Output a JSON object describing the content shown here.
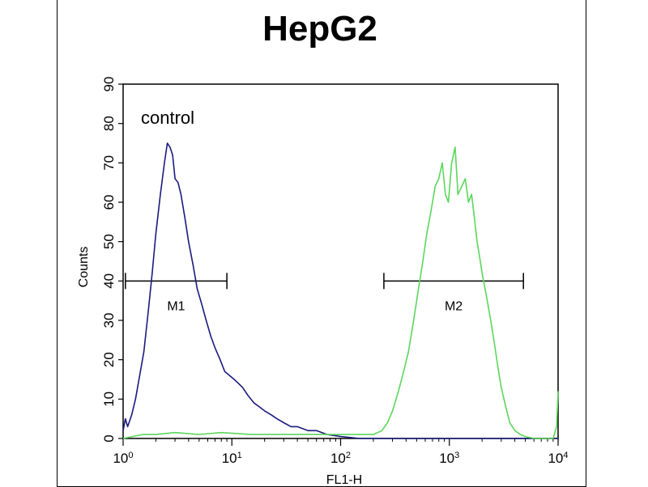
{
  "chart_data": {
    "type": "line",
    "title": "HepG2",
    "xlabel": "FL1-H",
    "ylabel": "Counts",
    "x_scale": "log",
    "xlim": [
      1,
      10000
    ],
    "ylim": [
      0,
      90
    ],
    "x_ticks": [
      {
        "base": "10",
        "exp": "0",
        "value": 1
      },
      {
        "base": "10",
        "exp": "1",
        "value": 10
      },
      {
        "base": "10",
        "exp": "2",
        "value": 100
      },
      {
        "base": "10",
        "exp": "3",
        "value": 1000
      },
      {
        "base": "10",
        "exp": "4",
        "value": 10000
      }
    ],
    "y_ticks": [
      "0",
      "10",
      "20",
      "30",
      "40",
      "50",
      "60",
      "70",
      "80",
      "90"
    ],
    "annotation": "control",
    "markers": [
      {
        "label": "M1",
        "x_start": 1.05,
        "x_end": 9,
        "y": 40
      },
      {
        "label": "M2",
        "x_start": 250,
        "x_end": 4800,
        "y": 40
      }
    ],
    "series": [
      {
        "color": "#1a1a80",
        "points": [
          [
            1.0,
            2
          ],
          [
            1.05,
            5
          ],
          [
            1.1,
            3
          ],
          [
            1.2,
            6
          ],
          [
            1.3,
            10
          ],
          [
            1.4,
            15
          ],
          [
            1.55,
            22
          ],
          [
            1.7,
            32
          ],
          [
            1.85,
            42
          ],
          [
            2.0,
            52
          ],
          [
            2.2,
            62
          ],
          [
            2.4,
            70
          ],
          [
            2.55,
            75
          ],
          [
            2.7,
            74
          ],
          [
            2.85,
            72
          ],
          [
            3.0,
            66
          ],
          [
            3.2,
            65
          ],
          [
            3.4,
            62
          ],
          [
            3.7,
            56
          ],
          [
            4.0,
            50
          ],
          [
            4.4,
            44
          ],
          [
            4.8,
            38
          ],
          [
            5.3,
            34
          ],
          [
            5.8,
            30
          ],
          [
            6.4,
            26
          ],
          [
            7.0,
            23
          ],
          [
            7.8,
            20
          ],
          [
            8.6,
            17
          ],
          [
            9.5,
            16
          ],
          [
            10.5,
            15
          ],
          [
            11.5,
            14
          ],
          [
            12.5,
            13
          ],
          [
            14,
            11
          ],
          [
            16,
            9
          ],
          [
            18,
            8
          ],
          [
            20,
            7
          ],
          [
            23,
            6
          ],
          [
            26,
            5
          ],
          [
            30,
            4
          ],
          [
            35,
            3
          ],
          [
            40,
            3
          ],
          [
            50,
            2
          ],
          [
            60,
            2
          ],
          [
            75,
            1
          ],
          [
            100,
            0.5
          ],
          [
            150,
            0
          ],
          [
            10000,
            0
          ]
        ]
      },
      {
        "color": "#5cd65c",
        "points": [
          [
            1,
            0
          ],
          [
            1.5,
            1
          ],
          [
            2,
            1
          ],
          [
            3,
            1.5
          ],
          [
            5,
            1
          ],
          [
            8,
            1.5
          ],
          [
            15,
            1
          ],
          [
            30,
            1
          ],
          [
            60,
            1
          ],
          [
            120,
            1
          ],
          [
            200,
            1
          ],
          [
            240,
            2
          ],
          [
            270,
            4
          ],
          [
            300,
            7
          ],
          [
            340,
            12
          ],
          [
            380,
            17
          ],
          [
            420,
            22
          ],
          [
            470,
            30
          ],
          [
            520,
            38
          ],
          [
            570,
            45
          ],
          [
            620,
            52
          ],
          [
            680,
            58
          ],
          [
            740,
            64
          ],
          [
            800,
            66
          ],
          [
            860,
            70
          ],
          [
            920,
            62
          ],
          [
            980,
            60
          ],
          [
            1050,
            70
          ],
          [
            1130,
            74
          ],
          [
            1200,
            62
          ],
          [
            1300,
            64
          ],
          [
            1400,
            66
          ],
          [
            1500,
            60
          ],
          [
            1600,
            62
          ],
          [
            1700,
            56
          ],
          [
            1800,
            50
          ],
          [
            1900,
            46
          ],
          [
            2000,
            42
          ],
          [
            2200,
            36
          ],
          [
            2400,
            30
          ],
          [
            2600,
            24
          ],
          [
            2800,
            18
          ],
          [
            3000,
            13
          ],
          [
            3300,
            8
          ],
          [
            3600,
            4
          ],
          [
            4000,
            2
          ],
          [
            4500,
            1
          ],
          [
            5000,
            0.5
          ],
          [
            6000,
            0
          ],
          [
            9000,
            0
          ],
          [
            9700,
            3
          ],
          [
            10000,
            12
          ]
        ]
      }
    ]
  }
}
